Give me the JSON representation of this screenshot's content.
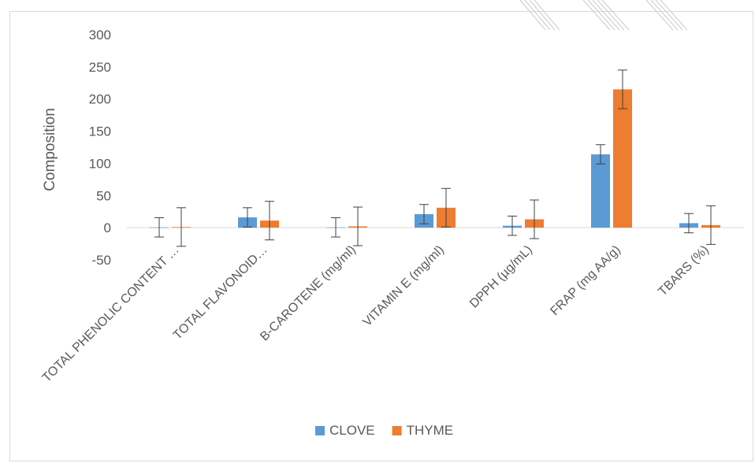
{
  "chart_data": {
    "type": "bar",
    "title": "",
    "xlabel": "",
    "ylabel": "Composition",
    "ylim": [
      -50,
      300
    ],
    "yticks": [
      -50,
      0,
      50,
      100,
      150,
      200,
      250,
      300
    ],
    "grid": false,
    "legend_position": "bottom",
    "categories": [
      "TOTAL PHENOLIC CONTENT …",
      "TOTAL FLAVONOID…",
      "B-CAROTENE (mg/ml)",
      "VITAMIN E (mg/ml)",
      "DPPH (µg/mL)",
      "FRAP (mg AA/g)",
      "TBARS (%)"
    ],
    "series": [
      {
        "name": "CLOVE",
        "color": "#5b9bd5",
        "values": [
          0.5,
          16,
          0.5,
          21,
          3,
          114,
          7
        ],
        "errors": [
          15,
          15,
          15,
          15,
          15,
          15,
          15
        ]
      },
      {
        "name": "THYME",
        "color": "#ed7d31",
        "values": [
          1,
          11,
          2,
          31,
          13,
          215,
          4
        ],
        "errors": [
          30,
          30,
          30,
          30,
          30,
          30,
          30
        ]
      }
    ]
  }
}
